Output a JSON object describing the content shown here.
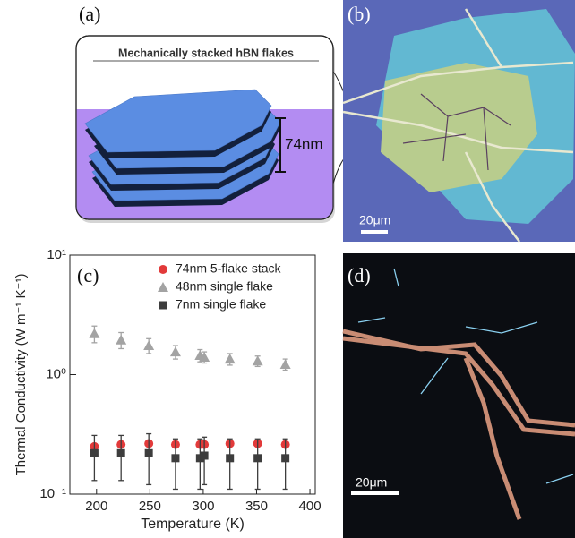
{
  "panels": {
    "a": {
      "label": "(a)",
      "title": "Mechanically stacked hBN flakes",
      "thickness": "74nm"
    },
    "b": {
      "label": "(b)",
      "scale_bar": "20μm"
    },
    "d": {
      "label": "(d)",
      "scale_bar": "20μm"
    }
  },
  "chart_data": {
    "type": "scatter",
    "label": "(c)",
    "x_label": "Temperature (K)",
    "y_label": "Thermal Conductivity (W m⁻¹ K⁻¹)",
    "xlim": [
      175,
      405
    ],
    "xticks": [
      200,
      250,
      300,
      350,
      400
    ],
    "ylim": [
      0.1,
      10
    ],
    "yscale": "log",
    "yticks": [
      {
        "value": 0.1,
        "label": "10⁻¹"
      },
      {
        "value": 1,
        "label": "10⁰"
      },
      {
        "value": 10,
        "label": "10¹"
      }
    ],
    "legend": "upper right",
    "series": [
      {
        "name": "74nm 5-flake stack",
        "color": "#e23a3a",
        "marker": "circle",
        "x": [
          198,
          223,
          249,
          274,
          297,
          301,
          325,
          351,
          377
        ],
        "values": [
          0.25,
          0.26,
          0.265,
          0.26,
          0.26,
          0.26,
          0.265,
          0.265,
          0.26
        ]
      },
      {
        "name": "48nm single flake",
        "color": "#a3a3a3",
        "marker": "triangle",
        "x": [
          198,
          223,
          249,
          274,
          297,
          301,
          325,
          351,
          377
        ],
        "values": [
          2.2,
          1.95,
          1.75,
          1.55,
          1.45,
          1.4,
          1.35,
          1.3,
          1.22
        ],
        "errors": [
          0.35,
          0.3,
          0.25,
          0.2,
          0.17,
          0.15,
          0.15,
          0.13,
          0.13
        ]
      },
      {
        "name": "7nm single flake",
        "color": "#3d3d3d",
        "marker": "square",
        "x": [
          198,
          223,
          249,
          274,
          297,
          301,
          325,
          351,
          377
        ],
        "values": [
          0.22,
          0.22,
          0.22,
          0.2,
          0.2,
          0.21,
          0.2,
          0.2,
          0.2
        ],
        "errors": [
          0.09,
          0.09,
          0.1,
          0.09,
          0.09,
          0.09,
          0.09,
          0.09,
          0.09
        ]
      }
    ]
  }
}
